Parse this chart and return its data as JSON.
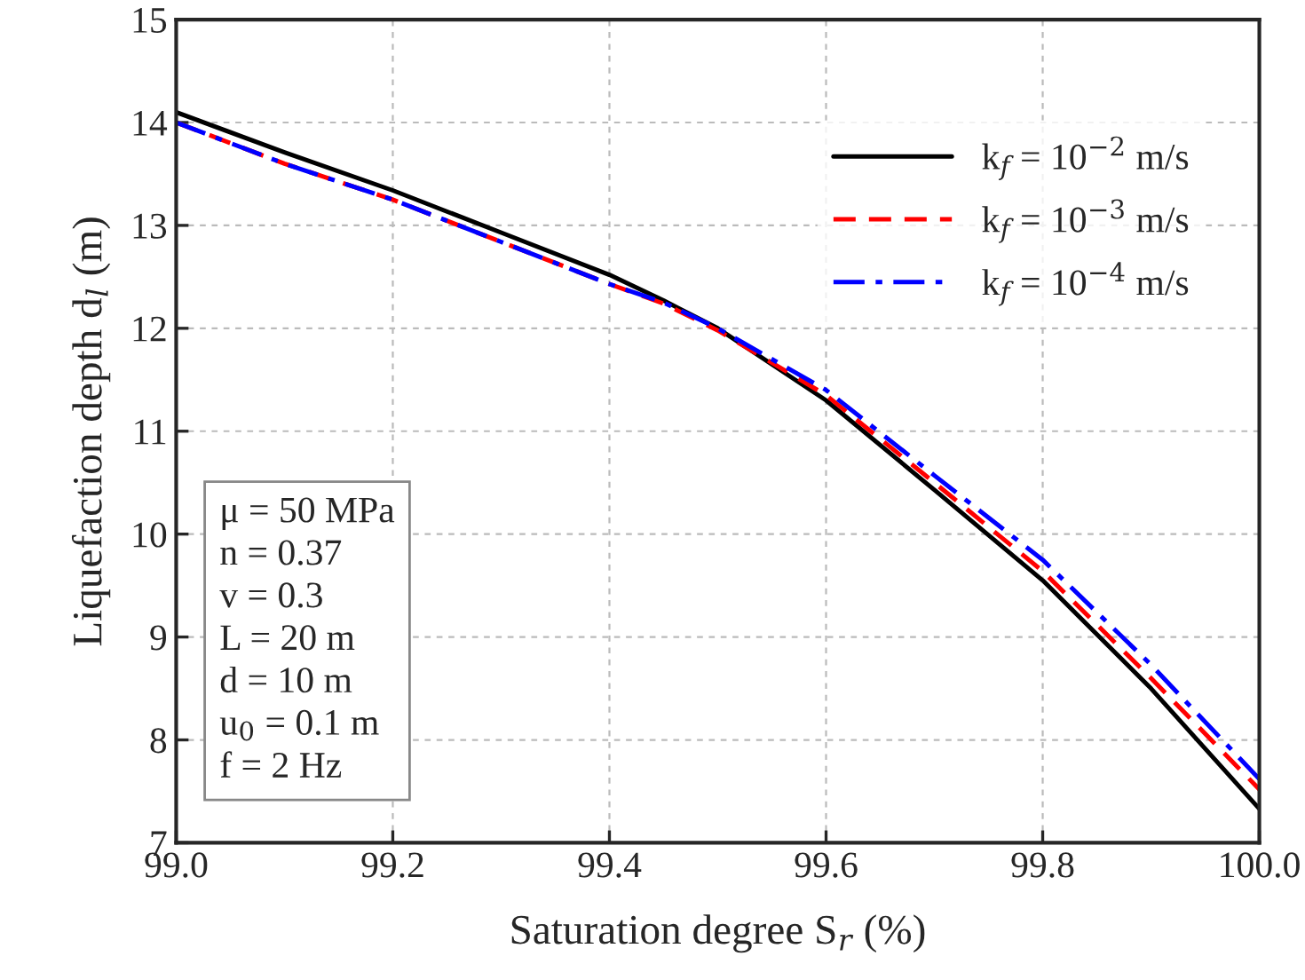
{
  "chart_data": {
    "type": "line",
    "xlabel": "Saturation degree S$_{r}$ (%)",
    "ylabel": "Liquefaction depth d$_{l}$ (m)",
    "x": [
      99.0,
      99.1,
      99.2,
      99.3,
      99.4,
      99.45,
      99.5,
      99.6,
      99.7,
      99.8,
      99.9,
      100.0
    ],
    "series": [
      {
        "name": "k$_{f}$ = 10$^{−2}$ m/s",
        "color": "#000000",
        "line_style": "solid",
        "values": [
          14.1,
          13.71,
          13.34,
          12.93,
          12.52,
          12.27,
          12.0,
          11.3,
          10.43,
          9.55,
          8.5,
          7.33
        ]
      },
      {
        "name": "k$_{f}$ = 10$^{−3}$ m/s",
        "color": "#ff0000",
        "line_style": "dashed",
        "values": [
          14.0,
          13.6,
          13.25,
          12.84,
          12.43,
          12.24,
          11.98,
          11.35,
          10.5,
          9.64,
          8.6,
          7.52
        ]
      },
      {
        "name": "k$_{f}$ = 10$^{−4}$ m/s",
        "color": "#0000ff",
        "line_style": "dashdot",
        "values": [
          14.0,
          13.6,
          13.25,
          12.84,
          12.43,
          12.25,
          12.0,
          11.4,
          10.57,
          9.75,
          8.73,
          7.62
        ]
      }
    ],
    "xlim": [
      99.0,
      100.0
    ],
    "xticks": [
      {
        "value": 99.0,
        "label": "99.0"
      },
      99.2,
      99.4,
      99.6,
      99.8,
      {
        "value": 100.0,
        "label": "100.0"
      }
    ],
    "ylim": [
      7,
      15
    ],
    "yticks": [
      7,
      8,
      9,
      10,
      11,
      12,
      13,
      14,
      15
    ],
    "grid": true,
    "legend": "top right",
    "annotations": [
      "μ = 50 MPa\nn = 0.37\nv = 0.3\nL = 20 m\nd = 10 m\nu$_{0}$ = 0.1 m\nf = 2 Hz"
    ]
  }
}
